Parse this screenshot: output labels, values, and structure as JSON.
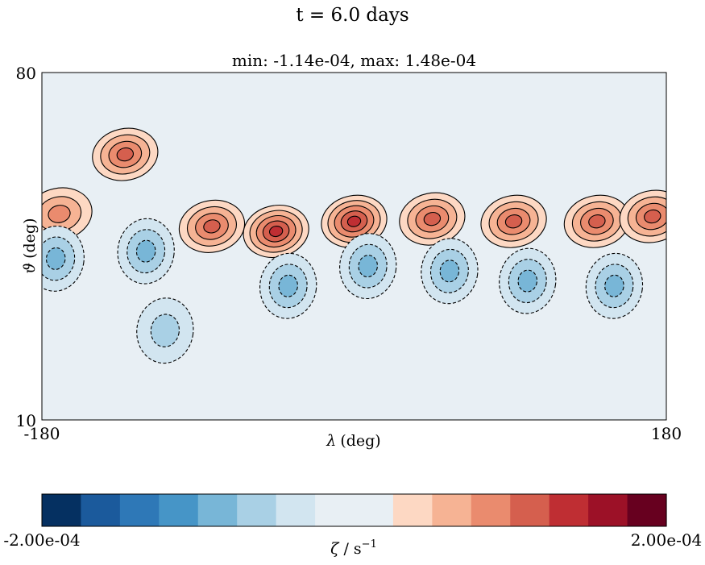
{
  "suptitle": "t = 6.0 days",
  "axes_title": "min: -1.14e-04, max: 1.48e-04",
  "chart_data": {
    "type": "heatmap",
    "subtype": "filled-contour",
    "title": "min: -1.14e-04, max: 1.48e-04",
    "xlabel_symbol": "λ",
    "xlabel_unit": "(deg)",
    "ylabel_symbol": "ϑ",
    "ylabel_unit": "(deg)",
    "xlim": [
      -180,
      180
    ],
    "ylim": [
      10,
      80
    ],
    "x_ticks": [
      "-180",
      "180"
    ],
    "y_ticks": [
      "10",
      "80"
    ],
    "field_min": -0.000114,
    "field_max": 0.000148,
    "background_value": 0,
    "contour_lines": {
      "positive": "solid",
      "negative": "dashed",
      "color": "#000000"
    },
    "features": [
      {
        "sign": 1,
        "lon": -170,
        "lat": 51.5,
        "value": 7e-05
      },
      {
        "sign": 1,
        "lon": -132,
        "lat": 63.5,
        "value": 9e-05
      },
      {
        "sign": 1,
        "lon": -82,
        "lat": 49,
        "value": 0.0001
      },
      {
        "sign": 1,
        "lon": -45,
        "lat": 48,
        "value": 0.00013
      },
      {
        "sign": 1,
        "lon": 0,
        "lat": 50,
        "value": 0.00012
      },
      {
        "sign": 1,
        "lon": 45,
        "lat": 50.5,
        "value": 0.0001
      },
      {
        "sign": 1,
        "lon": 92,
        "lat": 50,
        "value": 0.0001
      },
      {
        "sign": 1,
        "lon": 140,
        "lat": 50,
        "value": 0.0001
      },
      {
        "sign": 1,
        "lon": 172,
        "lat": 51,
        "value": 9e-05
      },
      {
        "sign": -1,
        "lon": -172,
        "lat": 42.5,
        "value": -7e-05
      },
      {
        "sign": -1,
        "lon": -120,
        "lat": 44,
        "value": -8e-05
      },
      {
        "sign": -1,
        "lon": -109,
        "lat": 28,
        "value": -5e-05
      },
      {
        "sign": -1,
        "lon": -38,
        "lat": 37,
        "value": -7e-05
      },
      {
        "sign": -1,
        "lon": 8,
        "lat": 41,
        "value": -7e-05
      },
      {
        "sign": -1,
        "lon": 55,
        "lat": 40,
        "value": -7e-05
      },
      {
        "sign": -1,
        "lon": 100,
        "lat": 38,
        "value": -7e-05
      },
      {
        "sign": -1,
        "lon": 150,
        "lat": 37,
        "value": -7e-05
      }
    ],
    "colorbar": {
      "min_label": "-2.00e-04",
      "max_label": "2.00e-04",
      "label_symbol": "ζ",
      "label_unit": "/ s",
      "label_exponent": "−1",
      "levels": [
        -0.0002,
        -0.000175,
        -0.00015,
        -0.000125,
        -0.0001,
        -7.5e-05,
        -5e-05,
        -2.5e-05,
        0,
        2.5e-05,
        5e-05,
        7.5e-05,
        0.0001,
        0.000125,
        0.00015,
        0.000175,
        0.0002
      ],
      "colors": [
        "#053061",
        "#1b5a9c",
        "#2e78b7",
        "#4695c7",
        "#78b6d7",
        "#a9d0e5",
        "#d2e5f0",
        "#e8eff4",
        "#e8eff4",
        "#fdd8c3",
        "#f6b394",
        "#ea8b6e",
        "#d55f4e",
        "#bf2e33",
        "#9c1127",
        "#67001f"
      ]
    }
  }
}
